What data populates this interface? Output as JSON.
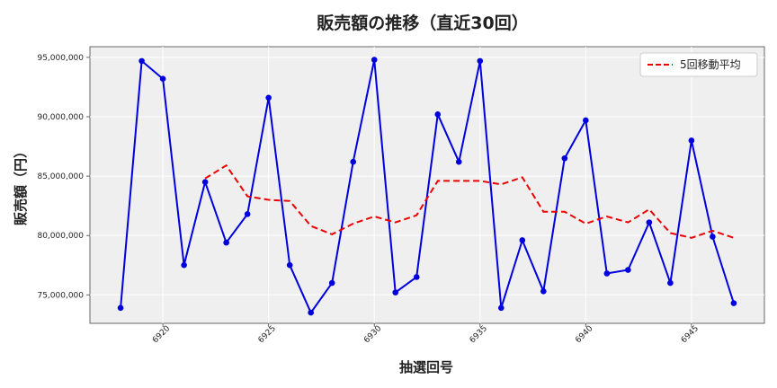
{
  "chart_data": {
    "type": "line",
    "title": "販売額の推移（直近30回）",
    "xlabel": "抽選回号",
    "ylabel": "販売額（円）",
    "xlim": [
      6916.55,
      6948.45
    ],
    "ylim": [
      72600000,
      95900000
    ],
    "xticks": [
      6920,
      6925,
      6930,
      6935,
      6940,
      6945
    ],
    "yticks": [
      75000000,
      80000000,
      85000000,
      90000000,
      95000000
    ],
    "ytick_labels": [
      "75,000,000",
      "80,000,000",
      "85,000,000",
      "90,000,000",
      "95,000,000"
    ],
    "grid": true,
    "legend_position": "top-right",
    "x": [
      6918,
      6919,
      6920,
      6921,
      6922,
      6923,
      6924,
      6925,
      6926,
      6927,
      6928,
      6929,
      6930,
      6931,
      6932,
      6933,
      6934,
      6935,
      6936,
      6937,
      6938,
      6939,
      6940,
      6941,
      6942,
      6943,
      6944,
      6945,
      6946,
      6947
    ],
    "series": [
      {
        "name": "",
        "style": "solid-with-markers",
        "color": "#0000dd",
        "values": [
          73900000,
          94700000,
          93200000,
          77500000,
          84500000,
          79400000,
          81800000,
          91600000,
          77500000,
          73500000,
          76000000,
          86200000,
          94800000,
          75200000,
          76500000,
          90200000,
          86200000,
          94700000,
          73900000,
          79600000,
          75300000,
          86500000,
          89700000,
          76800000,
          77100000,
          81100000,
          76000000,
          88000000,
          79900000,
          74300000
        ]
      },
      {
        "name": "5回移動平均",
        "style": "dashed",
        "color": "#ee0000",
        "x": [
          6922,
          6923,
          6924,
          6925,
          6926,
          6927,
          6928,
          6929,
          6930,
          6931,
          6932,
          6933,
          6934,
          6935,
          6936,
          6937,
          6938,
          6939,
          6940,
          6941,
          6942,
          6943,
          6944,
          6945,
          6946,
          6947
        ],
        "values": [
          84800000,
          85900000,
          83300000,
          83000000,
          82900000,
          80800000,
          80100000,
          81000000,
          81600000,
          81100000,
          81700000,
          84600000,
          84600000,
          84600000,
          84300000,
          84900000,
          82000000,
          82000000,
          81000000,
          81600000,
          81100000,
          82200000,
          80200000,
          79800000,
          80400000,
          79800000
        ]
      }
    ]
  }
}
